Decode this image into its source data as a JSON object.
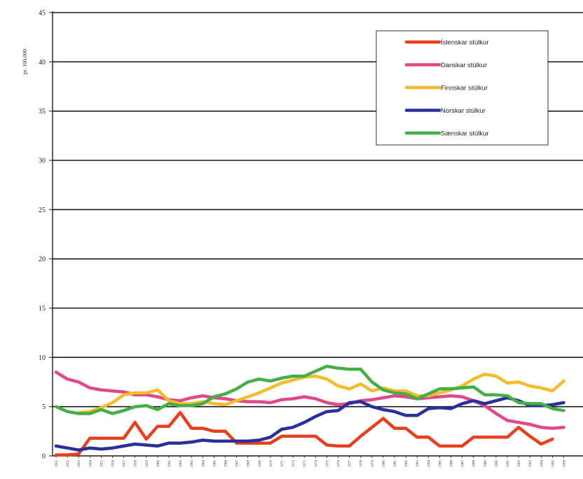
{
  "chart_data": {
    "type": "line",
    "title": "",
    "xlabel": "",
    "ylabel": "pr. 100.000",
    "ylim": [
      0,
      45
    ],
    "yticks": [
      0,
      5,
      10,
      15,
      20,
      25,
      30,
      35,
      40,
      45
    ],
    "grid": true,
    "legend_position": "top-right",
    "x": [
      "1951",
      "1952",
      "1953",
      "1954",
      "1955",
      "1956",
      "1957",
      "1958",
      "1959",
      "1960",
      "1961",
      "1962",
      "1963",
      "1964",
      "1965",
      "1966",
      "1967",
      "1968",
      "1969",
      "1970",
      "1971",
      "1972",
      "1973",
      "1974",
      "1975",
      "1976",
      "1977",
      "1978",
      "1979",
      "1980",
      "1981",
      "1982",
      "1983",
      "1984",
      "1985",
      "1986",
      "1987",
      "1988",
      "1989",
      "1990",
      "1991",
      "1992",
      "1993",
      "1994",
      "1995",
      "1996"
    ],
    "series": [
      {
        "name": "Íslenskar stúlkur",
        "color": "#e8401c",
        "values": [
          0.1,
          0.1,
          0.2,
          1.8,
          1.8,
          1.8,
          1.8,
          3.4,
          1.7,
          3.0,
          3.0,
          4.4,
          2.8,
          2.8,
          2.5,
          2.5,
          1.3,
          1.3,
          1.3,
          1.3,
          2.0,
          2.0,
          2.0,
          2.0,
          1.1,
          1.0,
          1.0,
          2.0,
          2.9,
          3.8,
          2.8,
          2.8,
          1.9,
          1.9,
          1.0,
          1.0,
          1.0,
          1.9,
          1.9,
          1.9,
          1.9,
          2.9,
          2.0,
          1.2,
          1.7,
          null
        ]
      },
      {
        "name": "Danskar stúlkur",
        "color": "#e0488a",
        "values": [
          8.5,
          7.8,
          7.5,
          6.9,
          6.7,
          6.6,
          6.5,
          6.2,
          6.2,
          6.0,
          5.7,
          5.6,
          5.9,
          6.1,
          5.9,
          5.8,
          5.6,
          5.5,
          5.5,
          5.4,
          5.7,
          5.8,
          6.0,
          5.8,
          5.4,
          5.2,
          5.3,
          5.6,
          5.7,
          5.9,
          6.1,
          6.0,
          5.8,
          5.9,
          6.0,
          6.1,
          6.0,
          5.6,
          5.1,
          4.3,
          3.6,
          3.4,
          3.2,
          2.9,
          2.8,
          2.9
        ]
      },
      {
        "name": "Finnskar stúlkur",
        "color": "#f4bb2c",
        "values": [
          null,
          null,
          4.4,
          4.5,
          4.9,
          5.4,
          6.2,
          6.4,
          6.4,
          6.7,
          5.6,
          5.3,
          5.3,
          5.5,
          5.3,
          5.2,
          5.6,
          6.0,
          6.4,
          6.9,
          7.4,
          7.7,
          8.0,
          8.1,
          7.8,
          7.1,
          6.8,
          7.3,
          6.6,
          6.9,
          6.6,
          6.6,
          6.1,
          6.1,
          6.4,
          6.7,
          7.1,
          7.8,
          8.3,
          8.1,
          7.4,
          7.5,
          7.1,
          6.9,
          6.6,
          7.6
        ]
      },
      {
        "name": "Norskar stúlkur",
        "color": "#2b2f9a",
        "values": [
          1.0,
          0.8,
          0.6,
          0.8,
          0.7,
          0.8,
          1.0,
          1.2,
          1.1,
          1.0,
          1.3,
          1.3,
          1.4,
          1.6,
          1.5,
          1.5,
          1.5,
          1.5,
          1.6,
          1.9,
          2.7,
          2.9,
          3.4,
          4.0,
          4.5,
          4.6,
          5.4,
          5.5,
          5.0,
          4.7,
          4.5,
          4.1,
          4.1,
          4.8,
          4.9,
          4.8,
          5.3,
          5.6,
          5.3,
          5.6,
          5.9,
          5.6,
          5.1,
          5.1,
          5.2,
          5.4
        ]
      },
      {
        "name": "Sænskar stúlkur",
        "color": "#43b047",
        "values": [
          5.0,
          4.5,
          4.3,
          4.3,
          4.7,
          4.3,
          4.6,
          5.0,
          5.1,
          4.7,
          5.3,
          5.1,
          5.1,
          5.3,
          6.0,
          6.3,
          6.8,
          7.5,
          7.8,
          7.6,
          7.9,
          8.1,
          8.1,
          8.6,
          9.1,
          8.9,
          8.8,
          8.8,
          7.5,
          6.7,
          6.4,
          6.3,
          5.8,
          6.3,
          6.8,
          6.8,
          6.9,
          7.0,
          6.2,
          6.2,
          6.1,
          5.4,
          5.3,
          5.3,
          4.8,
          4.6
        ]
      }
    ]
  }
}
